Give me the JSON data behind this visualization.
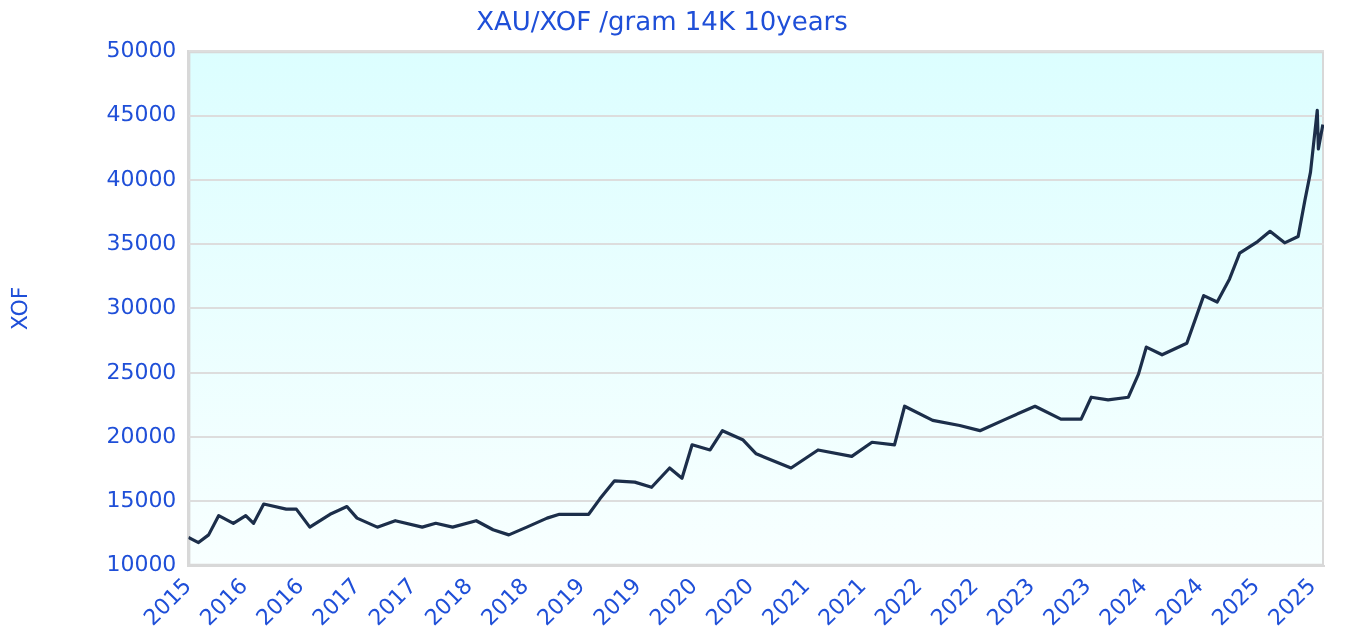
{
  "chart_data": {
    "type": "line",
    "title": "XAU/XOF /gram 14K 10years",
    "ylabel": "XOF",
    "x": [
      2015.5,
      2015.59,
      2015.68,
      2015.77,
      2015.9,
      2016.01,
      2016.08,
      2016.17,
      2016.37,
      2016.46,
      2016.58,
      2016.76,
      2016.91,
      2017.0,
      2017.18,
      2017.34,
      2017.58,
      2017.7,
      2017.85,
      2018.06,
      2018.21,
      2018.35,
      2018.51,
      2018.69,
      2018.8,
      2019.06,
      2019.16,
      2019.29,
      2019.47,
      2019.62,
      2019.78,
      2019.89,
      2019.98,
      2020.14,
      2020.25,
      2020.43,
      2020.55,
      2020.86,
      2021.1,
      2021.4,
      2021.58,
      2021.78,
      2021.87,
      2022.12,
      2022.36,
      2022.54,
      2022.77,
      2023.03,
      2023.26,
      2023.44,
      2023.53,
      2023.68,
      2023.86,
      2023.95,
      2024.02,
      2024.16,
      2024.38,
      2024.53,
      2024.65,
      2024.76,
      2024.85,
      2025.01,
      2025.12,
      2025.25,
      2025.37,
      2025.43,
      2025.48,
      2025.54,
      2025.55,
      2025.59
    ],
    "series": [
      {
        "color": "#1c2e4a",
        "values": [
          12200,
          11800,
          12400,
          13900,
          13300,
          13900,
          13300,
          14800,
          14400,
          14400,
          13000,
          14000,
          14600,
          13700,
          13000,
          13500,
          13000,
          13300,
          13000,
          13500,
          12800,
          12400,
          13000,
          13700,
          14000,
          14000,
          15200,
          16600,
          16500,
          16100,
          17600,
          16800,
          19400,
          19000,
          20500,
          19800,
          18700,
          17600,
          19000,
          18500,
          19600,
          19400,
          22400,
          21300,
          20900,
          20500,
          21400,
          22400,
          21400,
          21400,
          23100,
          22900,
          23100,
          24900,
          27000,
          26400,
          27300,
          31000,
          30500,
          32300,
          34300,
          35200,
          36000,
          35100,
          35600,
          38400,
          40600,
          45400,
          42400,
          44300
        ]
      }
    ],
    "xlim": [
      2015.5,
      2025.6
    ],
    "xticks": [
      {
        "value": 2015.5,
        "label": "2015"
      },
      {
        "value": 2016,
        "label": "2016"
      },
      {
        "value": 2016.5,
        "label": "2016"
      },
      {
        "value": 2017,
        "label": "2017"
      },
      {
        "value": 2017.5,
        "label": "2017"
      },
      {
        "value": 2018,
        "label": "2018"
      },
      {
        "value": 2018.5,
        "label": "2018"
      },
      {
        "value": 2019,
        "label": "2019"
      },
      {
        "value": 2019.5,
        "label": "2019"
      },
      {
        "value": 2020,
        "label": "2020"
      },
      {
        "value": 2020.5,
        "label": "2020"
      },
      {
        "value": 2021,
        "label": "2021"
      },
      {
        "value": 2021.5,
        "label": "2021"
      },
      {
        "value": 2022,
        "label": "2022"
      },
      {
        "value": 2022.5,
        "label": "2022"
      },
      {
        "value": 2023,
        "label": "2023"
      },
      {
        "value": 2023.5,
        "label": "2023"
      },
      {
        "value": 2024,
        "label": "2024"
      },
      {
        "value": 2024.5,
        "label": "2024"
      },
      {
        "value": 2025,
        "label": "2025"
      },
      {
        "value": 2025.5,
        "label": "2025"
      }
    ],
    "ylim": [
      10000,
      50000
    ],
    "yticks": [
      10000,
      15000,
      20000,
      25000,
      30000,
      35000,
      40000,
      45000,
      50000
    ],
    "grid": "y",
    "legend": false,
    "marker": "none",
    "line_style": "solid"
  }
}
